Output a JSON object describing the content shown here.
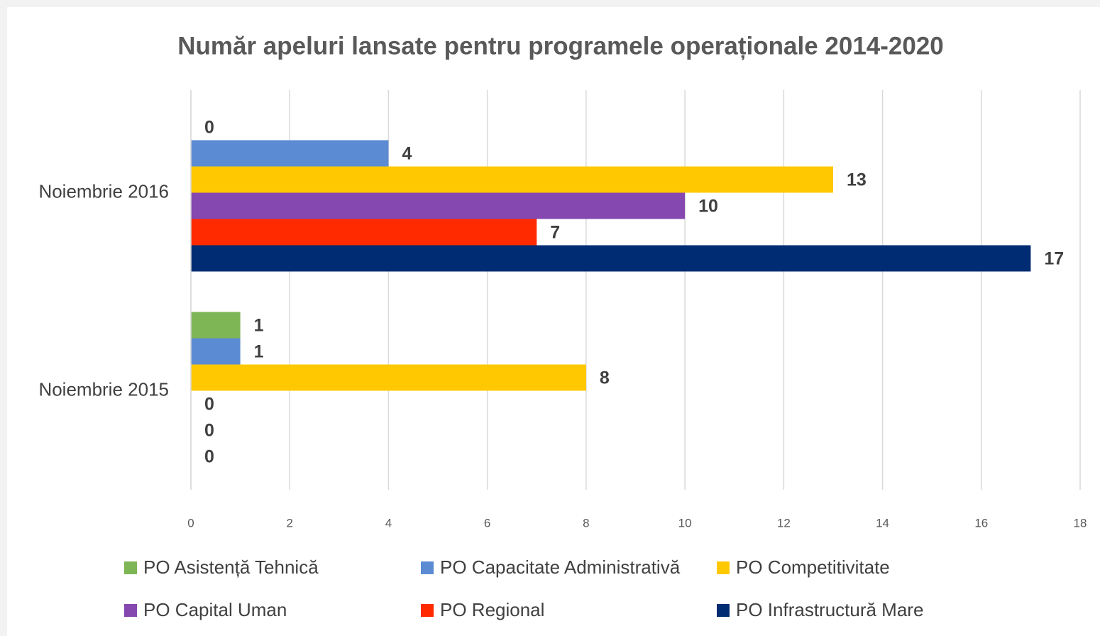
{
  "chart_data": {
    "type": "bar",
    "orientation": "horizontal",
    "title": "Număr apeluri lansate pentru programele operaționale 2014-2020",
    "categories": [
      "Noiembrie 2016",
      "Noiembrie 2015"
    ],
    "series": [
      {
        "name": "PO Asistență Tehnică",
        "color": "#7fb655",
        "values": [
          0,
          1
        ]
      },
      {
        "name": "PO Capacitate Administrativă",
        "color": "#5b8bd3",
        "values": [
          4,
          1
        ]
      },
      {
        "name": "PO Competitivitate",
        "color": "#ffc800",
        "values": [
          13,
          8
        ]
      },
      {
        "name": "PO Capital Uman",
        "color": "#8547b0",
        "values": [
          10,
          0
        ]
      },
      {
        "name": "PO Regional",
        "color": "#ff2a00",
        "values": [
          7,
          0
        ]
      },
      {
        "name": "PO Infrastructură Mare",
        "color": "#002c73",
        "values": [
          17,
          0
        ]
      }
    ],
    "xlim": [
      0,
      18
    ],
    "xticks": [
      0,
      2,
      4,
      6,
      8,
      10,
      12,
      14,
      16,
      18
    ],
    "grid": true,
    "legend": "bottom"
  }
}
